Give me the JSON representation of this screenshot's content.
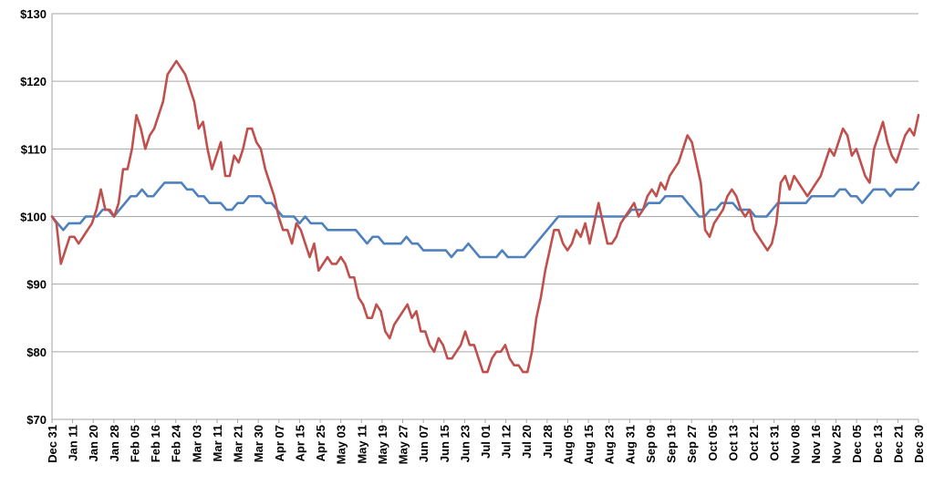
{
  "chart_data": {
    "type": "line",
    "title": "",
    "xlabel": "",
    "ylabel": "",
    "ylim": [
      70,
      130
    ],
    "y_ticks": [
      "$70",
      "$80",
      "$90",
      "$100",
      "$110",
      "$120",
      "$130"
    ],
    "y_tick_values": [
      70,
      80,
      90,
      100,
      110,
      120,
      130
    ],
    "grid": "horizontal",
    "legend": "none",
    "x_tick_labels": [
      "Dec 31",
      "Jan 11",
      "Jan 20",
      "Jan 28",
      "Feb 05",
      "Feb 16",
      "Feb 24",
      "Mar 03",
      "Mar 11",
      "Mar 21",
      "Mar 30",
      "Apr 07",
      "Apr 15",
      "Apr 25",
      "May 03",
      "May 11",
      "May 19",
      "May 27",
      "Jun 07",
      "Jun 15",
      "Jun 23",
      "Jul 01",
      "Jul 12",
      "Jul 20",
      "Jul 28",
      "Aug 05",
      "Aug 15",
      "Aug 23",
      "Aug 31",
      "Sep 09",
      "Sep 19",
      "Sep 27",
      "Oct 05",
      "Oct 13",
      "Oct 21",
      "Oct 31",
      "Nov 08",
      "Nov 16",
      "Nov 25",
      "Dec 05",
      "Dec 13",
      "Dec 21",
      "Dec 30"
    ],
    "series": [
      {
        "color": "#4F81BD",
        "values": [
          100,
          99,
          98,
          99,
          99,
          99,
          100,
          100,
          100,
          101,
          101,
          100,
          101,
          102,
          103,
          103,
          104,
          103,
          103,
          104,
          105,
          105,
          105,
          105,
          104,
          104,
          103,
          103,
          102,
          102,
          102,
          101,
          101,
          102,
          102,
          103,
          103,
          103,
          102,
          102,
          101,
          100,
          100,
          100,
          99,
          100,
          99,
          99,
          99,
          98,
          98,
          98,
          98,
          98,
          98,
          97,
          96,
          97,
          97,
          96,
          96,
          96,
          96,
          97,
          96,
          96,
          95,
          95,
          95,
          95,
          95,
          94,
          95,
          95,
          96,
          95,
          94,
          94,
          94,
          94,
          95,
          94,
          94,
          94,
          94,
          95,
          96,
          97,
          98,
          99,
          100,
          100,
          100,
          100,
          100,
          100,
          100,
          100,
          100,
          100,
          100,
          100,
          100,
          101,
          101,
          101,
          102,
          102,
          102,
          103,
          103,
          103,
          103,
          102,
          101,
          100,
          100,
          101,
          101,
          102,
          102,
          102,
          101,
          101,
          101,
          100,
          100,
          100,
          101,
          102,
          102,
          102,
          102,
          102,
          102,
          103,
          103,
          103,
          103,
          103,
          104,
          104,
          103,
          103,
          102,
          103,
          104,
          104,
          104,
          103,
          104,
          104,
          104,
          104,
          105
        ]
      },
      {
        "color": "#C0504D",
        "values": [
          100,
          99,
          93,
          95,
          97,
          97,
          96,
          97,
          98,
          99,
          101,
          104,
          101,
          101,
          100,
          102,
          107,
          107,
          110,
          115,
          113,
          110,
          112,
          113,
          115,
          117,
          121,
          122,
          123,
          122,
          121,
          119,
          117,
          113,
          114,
          110,
          107,
          109,
          111,
          106,
          106,
          109,
          108,
          110,
          113,
          113,
          111,
          110,
          107,
          105,
          103,
          100,
          98,
          98,
          96,
          99,
          98,
          96,
          94,
          96,
          92,
          93,
          94,
          93,
          93,
          94,
          93,
          91,
          91,
          88,
          87,
          85,
          85,
          87,
          86,
          83,
          82,
          84,
          85,
          86,
          87,
          85,
          86,
          83,
          83,
          81,
          80,
          82,
          81,
          79,
          79,
          80,
          81,
          83,
          81,
          81,
          79,
          77,
          77,
          79,
          80,
          80,
          81,
          79,
          78,
          78,
          77,
          77,
          80,
          85,
          88,
          92,
          95,
          98,
          98,
          96,
          95,
          96,
          98,
          97,
          99,
          96,
          99,
          102,
          99,
          96,
          96,
          97,
          99,
          100,
          101,
          102,
          100,
          101,
          103,
          104,
          103,
          105,
          104,
          106,
          107,
          108,
          110,
          112,
          111,
          108,
          105,
          98,
          97,
          99,
          100,
          101,
          103,
          104,
          103,
          101,
          100,
          101,
          98,
          97,
          96,
          95,
          96,
          99,
          105,
          106,
          104,
          106,
          105,
          104,
          103,
          104,
          105,
          106,
          108,
          110,
          109,
          111,
          113,
          112,
          109,
          110,
          108,
          106,
          105,
          110,
          112,
          114,
          111,
          109,
          108,
          110,
          112,
          113,
          112,
          115
        ]
      }
    ]
  }
}
